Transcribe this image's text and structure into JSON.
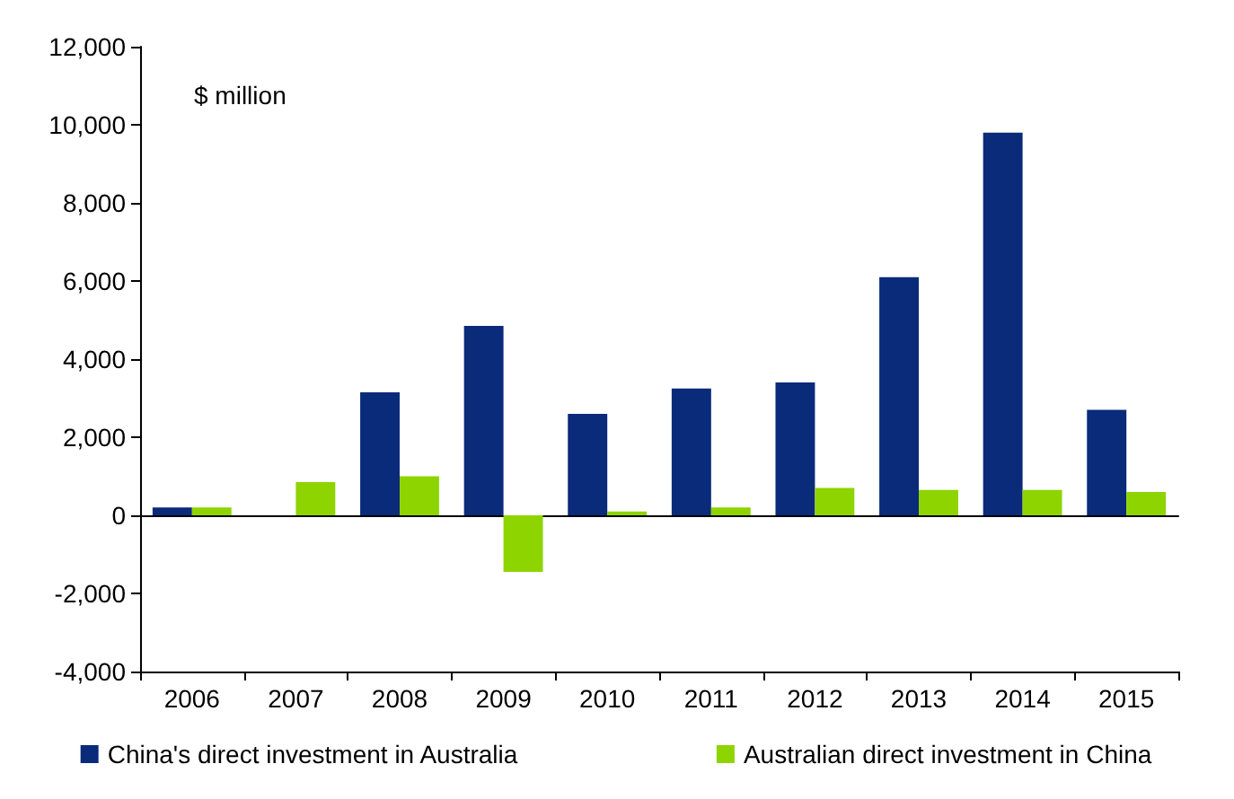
{
  "chart_data": {
    "type": "bar",
    "categories": [
      "2006",
      "2007",
      "2008",
      "2009",
      "2010",
      "2011",
      "2012",
      "2013",
      "2014",
      "2015"
    ],
    "series": [
      {
        "name": "China's direct investment in Australia",
        "color": "#0a2a7a",
        "values": [
          200,
          0,
          3150,
          4850,
          2600,
          3250,
          3400,
          6100,
          9800,
          2700
        ]
      },
      {
        "name": "Australian direct investment in China",
        "color": "#8ed400",
        "values": [
          200,
          850,
          1000,
          -1450,
          100,
          200,
          700,
          650,
          650,
          600
        ]
      }
    ],
    "ylim": [
      -4000,
      12000
    ],
    "yticks": [
      {
        "value": -4000,
        "label": "-4,000"
      },
      {
        "value": -2000,
        "label": "-2,000"
      },
      0,
      {
        "value": 2000,
        "label": "2,000"
      },
      {
        "value": 4000,
        "label": "4,000"
      },
      {
        "value": 6000,
        "label": "6,000"
      },
      {
        "value": 8000,
        "label": "8,000"
      },
      {
        "value": 10000,
        "label": "10,000"
      },
      {
        "value": 12000,
        "label": "12,000"
      }
    ],
    "annotations": [
      "$ million"
    ],
    "legend": "bottom"
  }
}
